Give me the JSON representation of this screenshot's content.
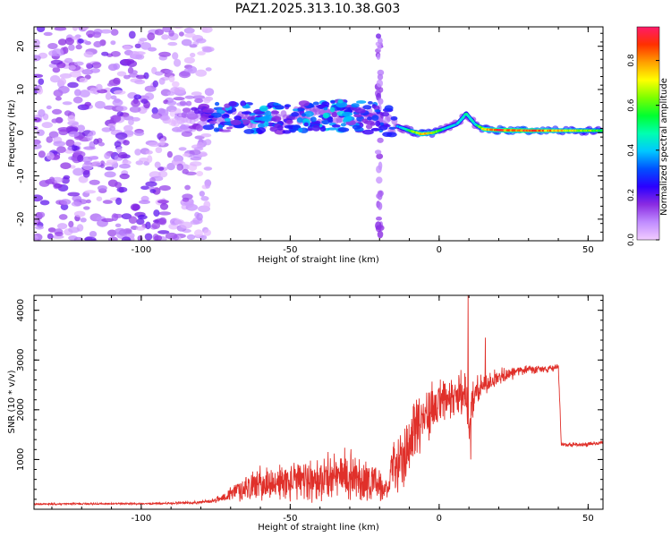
{
  "title": "PAZ1.2025.313.10.38.G03",
  "chart_data": [
    {
      "type": "heatmap",
      "xlabel": "Height of straight line (km)",
      "ylabel": "Frequency (Hz)",
      "xlim": [
        -136,
        55
      ],
      "ylim": [
        -25,
        24.5
      ],
      "xticks": [
        -100,
        -50,
        0,
        50
      ],
      "xtick_labels": [
        "-100",
        "-50",
        "0",
        "50"
      ],
      "yticks": [
        -20,
        -10,
        0,
        10,
        20
      ],
      "ytick_labels": [
        "-20",
        "-10",
        "0",
        "10",
        "20"
      ],
      "colorbar": {
        "label": "Normalized spectral amplitude",
        "range": [
          0,
          0.95
        ],
        "ticks": [
          0,
          0.2,
          0.4,
          0.6,
          0.8
        ],
        "tick_labels": [
          "0.0",
          "0.2",
          "0.4",
          "0.6",
          "0.8"
        ],
        "colors": [
          "#f2ccff",
          "#c08cff",
          "#8a2be2",
          "#2a00ff",
          "#0050ff",
          "#00c8ff",
          "#00ffb0",
          "#00ff30",
          "#7cff00",
          "#ffff00",
          "#ffa000",
          "#ff3000",
          "#ff1a6a"
        ]
      },
      "noise_region_x": [
        -136,
        -77
      ],
      "noise_amplitude": [
        0.02,
        0.2
      ],
      "vertical_artifact_x": -20,
      "ridge": {
        "x": [
          -90,
          -80,
          -70,
          -60,
          -50,
          -40,
          -30,
          -22,
          -18,
          -14,
          -10,
          -6,
          -2,
          2,
          6,
          8,
          9,
          12,
          15,
          20,
          30,
          40,
          55
        ],
        "freq": [
          3.5,
          4,
          3.5,
          3,
          3.5,
          4,
          4,
          3.5,
          2.5,
          1.5,
          0.5,
          -0.3,
          0,
          1,
          2,
          3.5,
          4.5,
          2,
          0.8,
          0.6,
          0.5,
          0.5,
          0.5
        ],
        "amplitude": [
          0.05,
          0.2,
          0.35,
          0.35,
          0.35,
          0.38,
          0.35,
          0.3,
          0.3,
          0.35,
          0.55,
          0.8,
          0.7,
          0.45,
          0.4,
          0.45,
          0.5,
          0.45,
          0.75,
          0.85,
          0.9,
          0.75,
          0.6
        ]
      }
    },
    {
      "type": "line",
      "xlabel": "Height of straight line (km)",
      "ylabel": "SNR (10 * v/v)",
      "xlim": [
        -136,
        55
      ],
      "ylim": [
        0,
        4300
      ],
      "xticks": [
        -100,
        -50,
        0,
        50
      ],
      "xtick_labels": [
        "-100",
        "-50",
        "0",
        "50"
      ],
      "yticks": [
        1000,
        2000,
        3000,
        4000
      ],
      "ytick_labels": [
        "1000",
        "2000",
        "3000",
        "4000"
      ],
      "color": "#e0302a",
      "series": [
        {
          "name": "SNR",
          "x": [
            -136,
            -120,
            -100,
            -90,
            -80,
            -75,
            -70,
            -65,
            -60,
            -55,
            -50,
            -45,
            -40,
            -35,
            -30,
            -25,
            -20,
            -17,
            -16,
            -14,
            -12,
            -10,
            -8,
            -5,
            0,
            5,
            9,
            10,
            12,
            15,
            20,
            25,
            30,
            35,
            39,
            40,
            41,
            45,
            50,
            55
          ],
          "y": [
            100,
            110,
            110,
            120,
            140,
            180,
            300,
            450,
            500,
            520,
            550,
            580,
            600,
            650,
            700,
            600,
            500,
            300,
            900,
            1000,
            1100,
            1300,
            1700,
            1900,
            2100,
            2200,
            2400,
            1800,
            2300,
            2500,
            2650,
            2750,
            2800,
            2800,
            2850,
            2900,
            1300,
            1300,
            1300,
            1350
          ],
          "fluct": [
            15,
            15,
            15,
            20,
            25,
            40,
            130,
            230,
            280,
            300,
            320,
            360,
            380,
            400,
            430,
            380,
            300,
            150,
            450,
            500,
            550,
            550,
            600,
            500,
            400,
            400,
            450,
            400,
            350,
            200,
            150,
            100,
            80,
            60,
            60,
            60,
            40,
            40,
            40,
            40
          ]
        }
      ],
      "spikes": [
        {
          "x": 9.7,
          "y": 4300
        },
        {
          "x": 15.5,
          "y": 3450
        },
        {
          "x": 10.6,
          "y": 1000
        }
      ]
    }
  ]
}
